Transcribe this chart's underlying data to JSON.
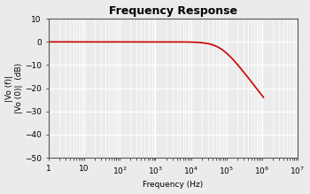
{
  "title": "Frequency Response",
  "xlabel": "Frequency (Hz)",
  "ylabel_line1": "|Vo (f)|",
  "ylabel_line2": "|Vo (0)|  (dB)",
  "xlim": [
    1,
    10000000.0
  ],
  "ylim": [
    -50,
    10
  ],
  "yticks": [
    10,
    0,
    -10,
    -20,
    -30,
    -40,
    -50
  ],
  "xticks": [
    1,
    10,
    100,
    1000,
    10000,
    100000,
    1000000,
    10000000
  ],
  "line_color": "#cc0000",
  "line_width": 1.2,
  "cutoff_freq": 70000,
  "f_start": 1,
  "f_end": 1100000,
  "n_points": 3000,
  "background_color": "#ebebeb",
  "grid_color": "#ffffff",
  "title_fontsize": 9,
  "label_fontsize": 6.5,
  "tick_fontsize": 6.5
}
